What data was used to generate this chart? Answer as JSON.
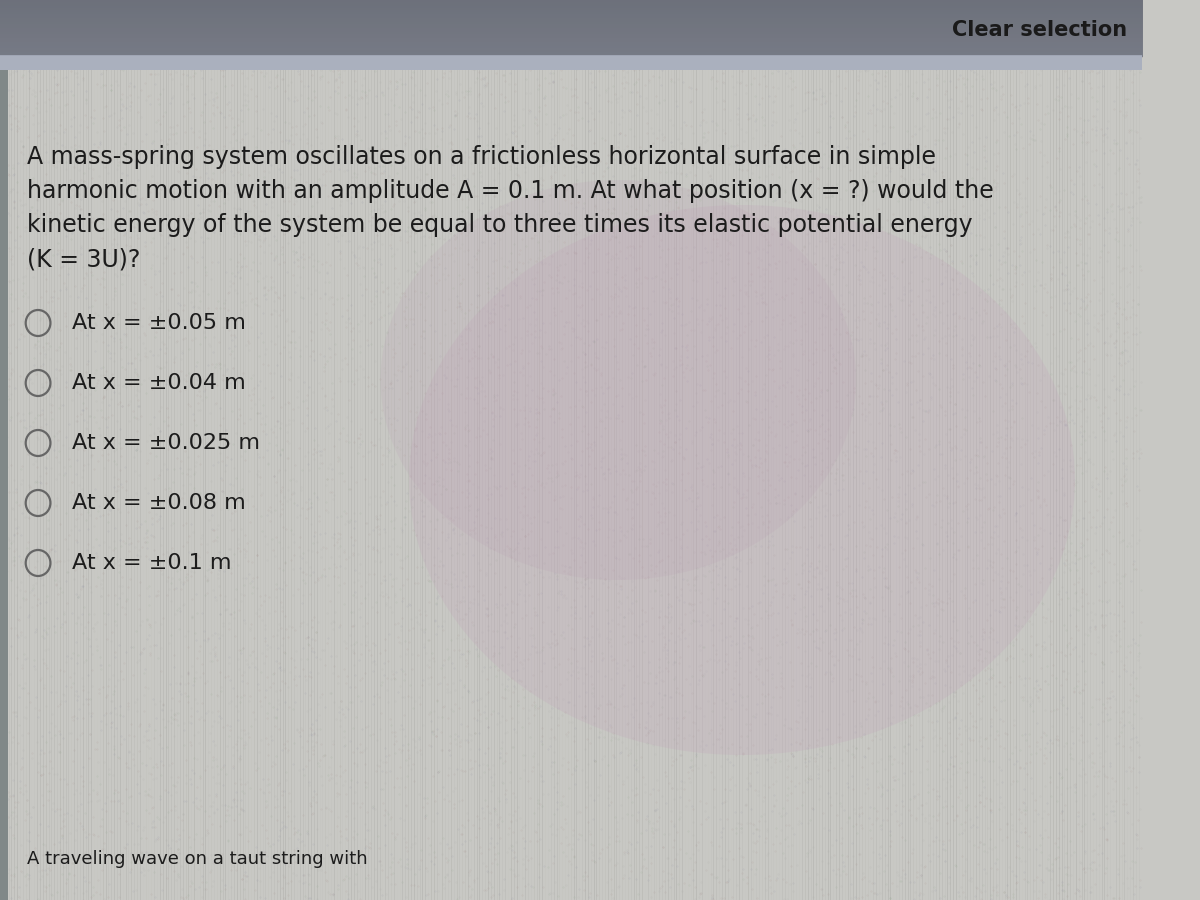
{
  "bg_top_color": "#b8bcc4",
  "bg_main_color": "#c8c8c4",
  "header_band_color": "#9aa0b0",
  "header_band2_color": "#aab0be",
  "header_text": "Clear selection",
  "header_text_color": "#1a1a1a",
  "header_font_size": 15,
  "question_lines": [
    "A mass-spring system oscillates on a frictionless horizontal surface in simple",
    "harmonic motion with an amplitude A = 0.1 m. At what position (x = ?) would the",
    "kinetic energy of the system be equal to three times its elastic potential energy",
    "(K = 3U)?"
  ],
  "question_font_size": 17,
  "question_color": "#1c1c1c",
  "options": [
    "At x = ±0.05 m",
    "At x = ±0.04 m",
    "At x = ±0.025 m",
    "At x = ±0.08 m",
    "At x = ±0.1 m"
  ],
  "option_font_size": 16,
  "option_color": "#1c1c1c",
  "radio_color": "#666666",
  "footer_text": "A traveling wave on a taut string with",
  "footer_font_size": 13,
  "footer_color": "#1c1c1c",
  "noise_alpha": 0.18,
  "glare_color": "#c8a8b8",
  "glare_alpha": 0.35
}
